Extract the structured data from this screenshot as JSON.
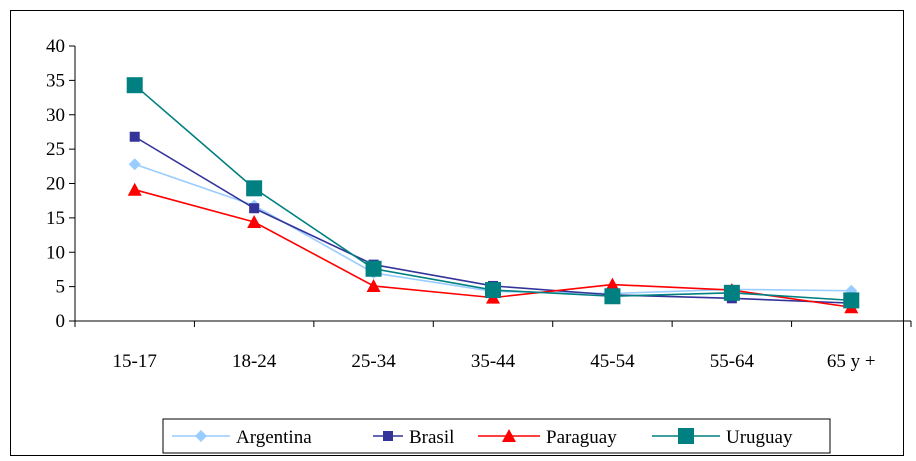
{
  "chart_data": {
    "type": "line",
    "title": "",
    "xlabel": "",
    "ylabel": "",
    "categories": [
      "15-17",
      "18-24",
      "25-34",
      "35-44",
      "45-54",
      "55-64",
      "65 y +"
    ],
    "ylim": [
      0,
      40
    ],
    "yticks": [
      0,
      5,
      10,
      15,
      20,
      25,
      30,
      35,
      40
    ],
    "grid": false,
    "legend_position": "bottom",
    "series": [
      {
        "name": "Argentina",
        "color": "#99CCFF",
        "marker": "diamond",
        "values": [
          22.8,
          16.8,
          7.0,
          4.3,
          4.0,
          4.6,
          4.4
        ]
      },
      {
        "name": "Brasil",
        "color": "#333399",
        "marker": "square",
        "values": [
          26.8,
          16.4,
          8.2,
          5.1,
          3.8,
          3.3,
          2.6
        ]
      },
      {
        "name": "Paraguay",
        "color": "#FF0000",
        "marker": "triangle",
        "values": [
          19.1,
          14.4,
          5.1,
          3.4,
          5.3,
          4.5,
          2.0
        ]
      },
      {
        "name": "Uruguay",
        "color": "#008080",
        "marker": "square-large",
        "values": [
          34.3,
          19.3,
          7.6,
          4.5,
          3.6,
          4.1,
          3.0
        ]
      }
    ]
  }
}
